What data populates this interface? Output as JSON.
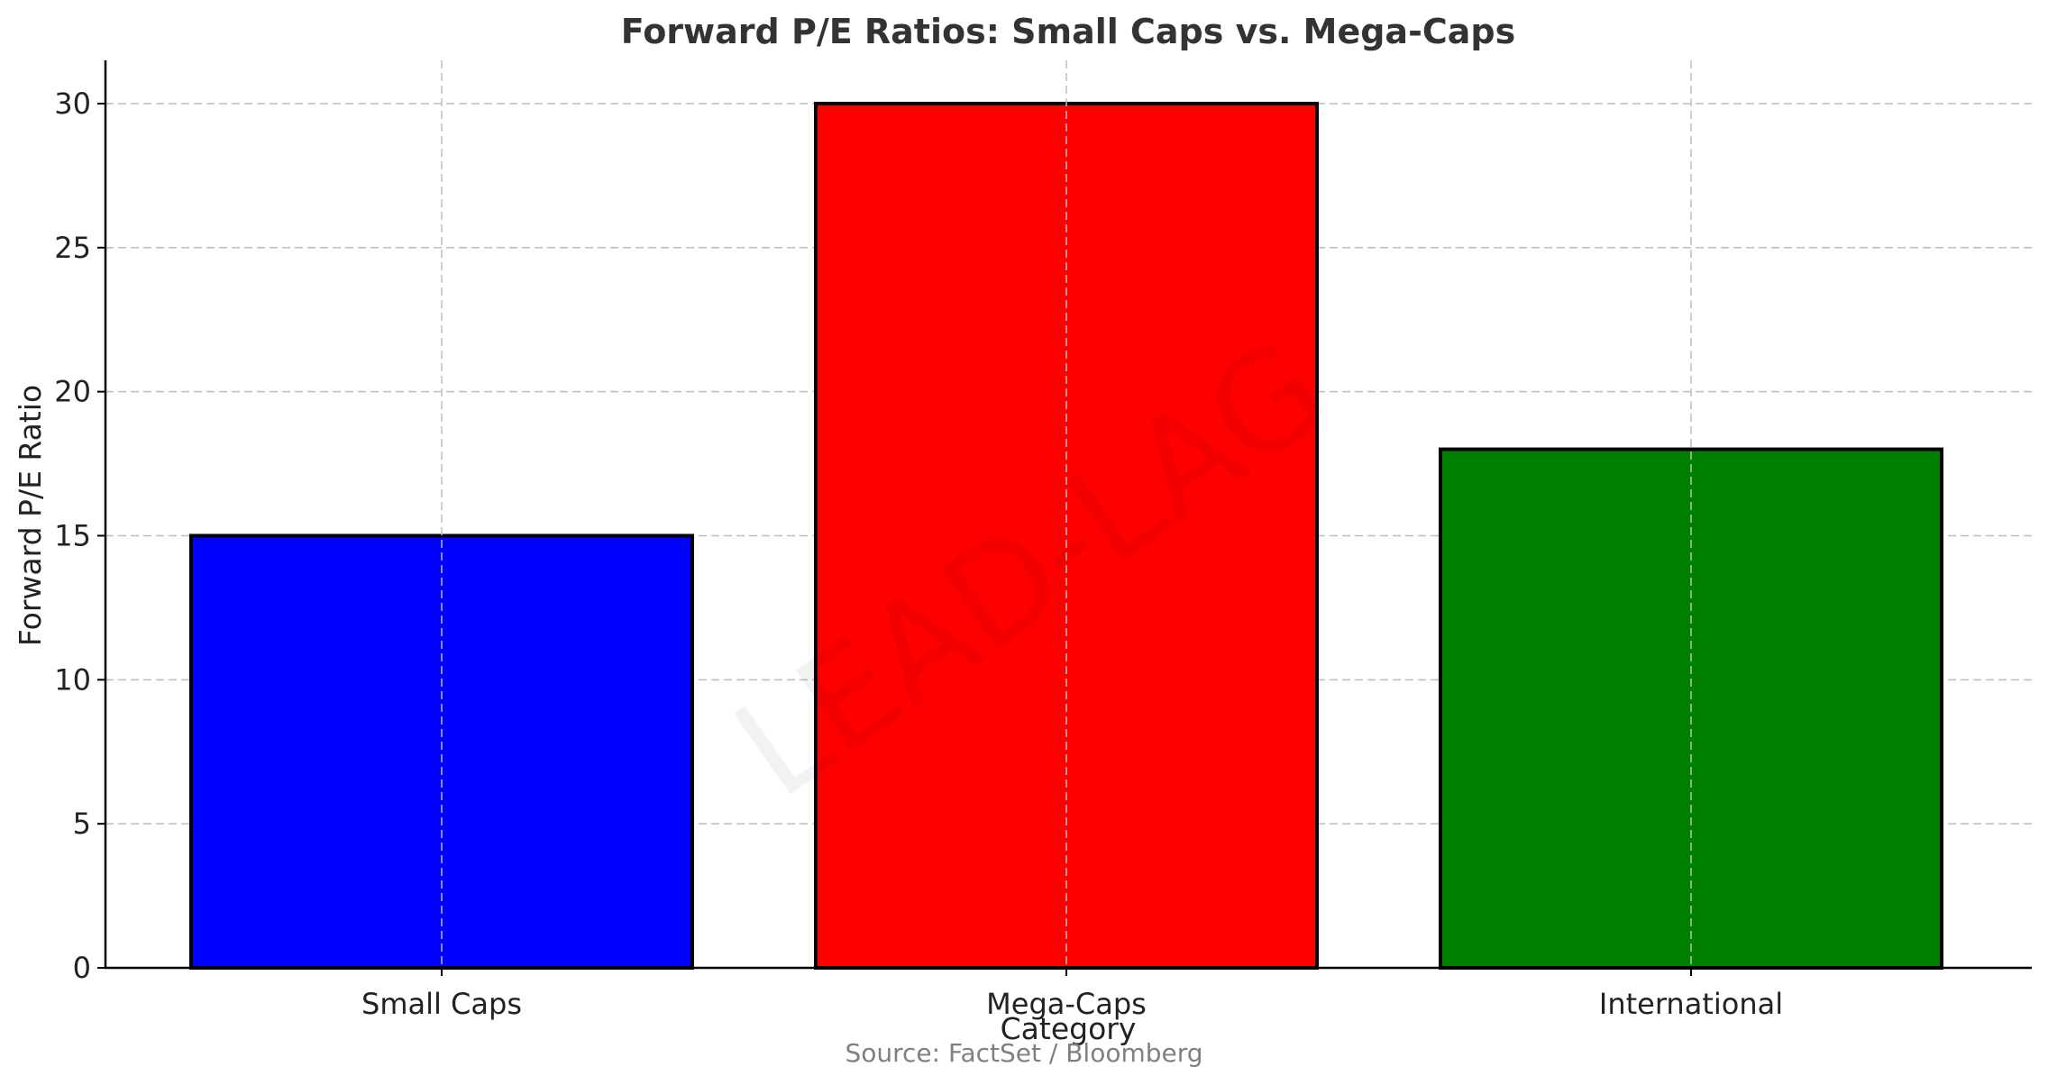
{
  "chart_data": {
    "type": "bar",
    "title": "Forward P/E Ratios: Small Caps vs. Mega-Caps",
    "xlabel": "Category",
    "ylabel": "Forward P/E Ratio",
    "categories": [
      "Small Caps",
      "Mega-Caps",
      "International"
    ],
    "values": [
      15,
      30,
      18
    ],
    "colors": [
      "#0000ff",
      "#ff0000",
      "#008000"
    ],
    "ylim": [
      0,
      31.5
    ],
    "yticks": [
      0,
      5,
      10,
      15,
      20,
      25,
      30
    ],
    "grid": true,
    "source": "Source: FactSet / Bloomberg",
    "watermark": "LEAD-LAG"
  }
}
